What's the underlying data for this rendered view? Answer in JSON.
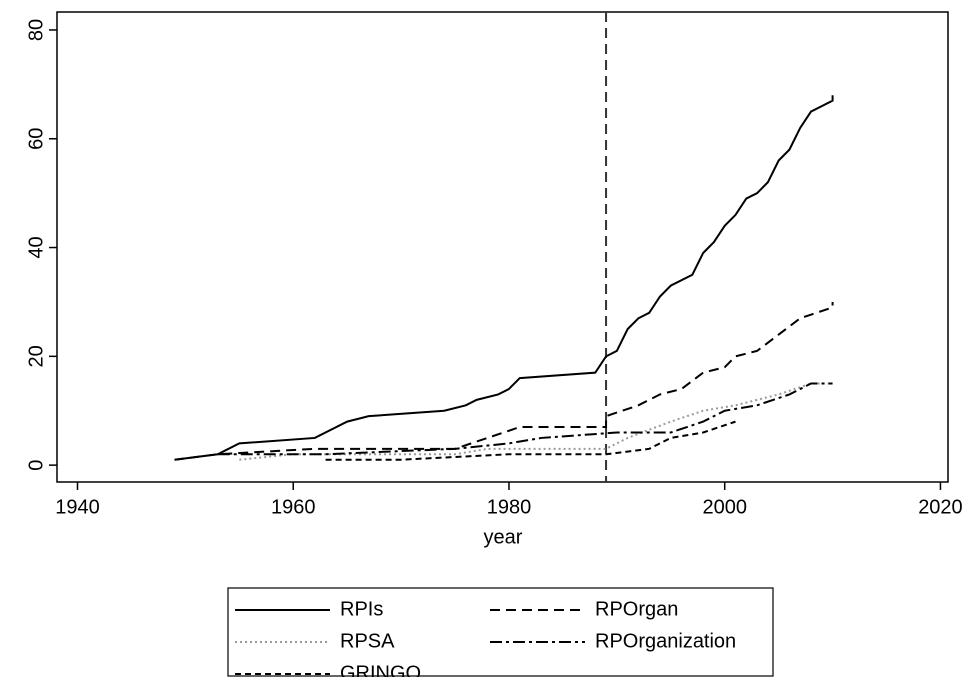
{
  "chart_data": {
    "type": "line",
    "x_label": "year",
    "xlim": [
      1938.1,
      2020.7
    ],
    "xticks": [
      1940,
      1960,
      1980,
      2000,
      2020
    ],
    "ylim": [
      -3.1,
      83.3
    ],
    "yticks": [
      0,
      20,
      40,
      60,
      80
    ],
    "vline": 1989,
    "vline_dash": "10,6",
    "legend": "bottom",
    "series": [
      {
        "name": "RPIs",
        "color": "#000000",
        "dash": "none",
        "x": [
          1949,
          1953,
          1955,
          1962,
          1965,
          1967,
          1974,
          1976,
          1977,
          1979,
          1980,
          1981,
          1988,
          1989,
          1990,
          1991,
          1992,
          1993,
          1994,
          1995,
          1997,
          1998,
          1999,
          2000,
          2001,
          2002,
          2003,
          2004,
          2005,
          2006,
          2007,
          2008,
          2009,
          2010,
          2010
        ],
        "values": [
          1,
          2,
          4,
          5,
          8,
          9,
          10,
          11,
          12,
          13,
          14,
          16,
          17,
          20,
          21,
          25,
          27,
          28,
          31,
          33,
          35,
          39,
          41,
          44,
          46,
          49,
          50,
          52,
          56,
          58,
          62,
          65,
          66,
          67,
          68
        ]
      },
      {
        "name": "RPOrgan",
        "color": "#000000",
        "dash": "10,6",
        "x": [
          1949,
          1953,
          1962,
          1975,
          1978,
          1981,
          1989,
          1989,
          1992,
          1994,
          1996,
          1998,
          2000,
          2001,
          2003,
          2005,
          2007,
          2010,
          2010
        ],
        "values": [
          1,
          2,
          3,
          3,
          5,
          7,
          7,
          9,
          11,
          13,
          14,
          17,
          18,
          20,
          21,
          24,
          27,
          29,
          30
        ]
      },
      {
        "name": "RPSA",
        "color": "#9a9a9a",
        "dash": "2,3",
        "x": [
          1955,
          1960,
          1975,
          1978,
          1989,
          1991,
          1995,
          1998,
          2001,
          2005,
          2008,
          2010
        ],
        "values": [
          1,
          2,
          2,
          3,
          3,
          5,
          8,
          10,
          11,
          13,
          15,
          15
        ]
      },
      {
        "name": "RPOrganization",
        "color": "#000000",
        "dash": "12,4,3,4",
        "x": [
          1953,
          1963,
          1975,
          1980,
          1983,
          1990,
          1995,
          1998,
          2000,
          2003,
          2006,
          2008,
          2010
        ],
        "values": [
          2,
          2,
          3,
          4,
          5,
          6,
          6,
          8,
          10,
          11,
          13,
          15,
          15
        ]
      },
      {
        "name": "GRINGO",
        "color": "#000000",
        "dash": "6,4",
        "x": [
          1963,
          1970,
          1980,
          1989,
          1993,
          1995,
          1998,
          2001
        ],
        "values": [
          1,
          1,
          2,
          2,
          3,
          5,
          6,
          8
        ]
      }
    ]
  }
}
